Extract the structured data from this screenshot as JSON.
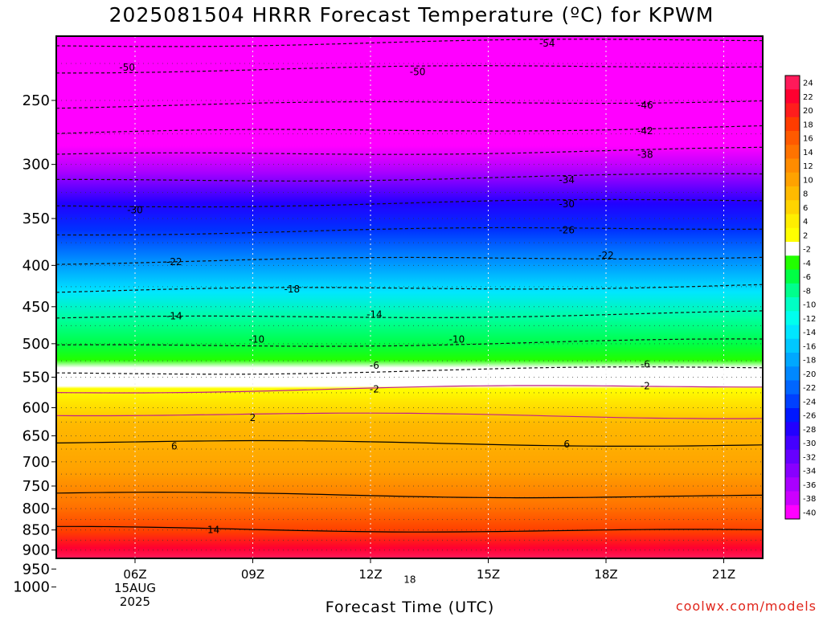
{
  "title": "2025081504 HRRR Forecast Temperature (ºC) for KPWM",
  "credit": "coolwx.com/models",
  "chart_data": {
    "type": "heatmap",
    "title": "2025081504 HRRR Forecast Temperature (ºC) for KPWM",
    "xlabel": "Forecast Time (UTC)",
    "ylabel": "",
    "x_ticks": [
      {
        "hour": 6,
        "label": "06Z",
        "extra": [
          "15AUG",
          "2025"
        ]
      },
      {
        "hour": 9,
        "label": "09Z"
      },
      {
        "hour": 12,
        "label": "12Z"
      },
      {
        "hour": 15,
        "label": "15Z"
      },
      {
        "hour": 18,
        "label": "18Z"
      },
      {
        "hour": 21,
        "label": "21Z"
      }
    ],
    "xlim_hours_utc": [
      4,
      22
    ],
    "y_scale": "log-pressure (hPa)",
    "ylim_hPa": [
      1050,
      200
    ],
    "y_ticks": [
      250,
      300,
      350,
      400,
      450,
      500,
      550,
      600,
      650,
      700,
      750,
      800,
      850,
      900,
      950,
      1000
    ],
    "y_gridlines_hPa": [
      225,
      250,
      275,
      300,
      325,
      350,
      375,
      400,
      425,
      450,
      475,
      500,
      525,
      550,
      575,
      600,
      625,
      650,
      675,
      700,
      725,
      750,
      775,
      800,
      825,
      850,
      875,
      900,
      925,
      950,
      975,
      1000
    ],
    "colorbar": {
      "labels": [
        "24",
        "22",
        "20",
        "18",
        "16",
        "14",
        "12",
        "10",
        "8",
        "6",
        "4",
        "2",
        "-2",
        "-4",
        "-6",
        "-8",
        "-10",
        "-12",
        "-14",
        "-16",
        "-18",
        "-20",
        "-22",
        "-24",
        "-26",
        "-28",
        "-30",
        "-32",
        "-34",
        "-36",
        "-38",
        "-40"
      ],
      "colors": [
        "#ff1a5a",
        "#ff0030",
        "#ff1d1d",
        "#ff3c00",
        "#ff5a00",
        "#ff7300",
        "#ff8c00",
        "#ffa200",
        "#ffba00",
        "#ffd400",
        "#ffee00",
        "#ffff00",
        "#ffffff",
        "#22ff00",
        "#00ff44",
        "#00ff8c",
        "#00ffc4",
        "#00ffee",
        "#00e6ff",
        "#00c8ff",
        "#00a8ff",
        "#0088ff",
        "#0066ff",
        "#0040ff",
        "#0018ff",
        "#2200ff",
        "#4400ff",
        "#6600ff",
        "#8800ff",
        "#aa00ff",
        "#cc00ff",
        "#ff00ff"
      ]
    },
    "isotherm_levels_hPa": [
      {
        "temp": -54,
        "hPa": 212
      },
      {
        "temp": -50,
        "hPa": 228
      },
      {
        "temp": -46,
        "hPa": 252
      },
      {
        "temp": -42,
        "hPa": 272
      },
      {
        "temp": -38,
        "hPa": 290
      },
      {
        "temp": -34,
        "hPa": 312
      },
      {
        "temp": -30,
        "hPa": 335
      },
      {
        "temp": -26,
        "hPa": 362
      },
      {
        "temp": -22,
        "hPa": 393
      },
      {
        "temp": -18,
        "hPa": 427
      },
      {
        "temp": -14,
        "hPa": 462
      },
      {
        "temp": -10,
        "hPa": 500
      },
      {
        "temp": -6,
        "hPa": 540
      },
      {
        "temp": -2,
        "hPa": 568
      },
      {
        "temp": 2,
        "hPa": 613
      },
      {
        "temp": 6,
        "hPa": 664
      },
      {
        "temp": 10,
        "hPa": 770
      },
      {
        "temp": 14,
        "hPa": 850
      },
      {
        "temp": 18,
        "hPa": 975
      }
    ],
    "contour_labels": [
      {
        "text": "-54",
        "hour": 16.5,
        "hPa": 212
      },
      {
        "text": "-50",
        "hour": 5.8,
        "hPa": 227
      },
      {
        "text": "-50",
        "hour": 13.2,
        "hPa": 230
      },
      {
        "text": "-46",
        "hour": 19.0,
        "hPa": 253
      },
      {
        "text": "-42",
        "hour": 19.0,
        "hPa": 272
      },
      {
        "text": "-38",
        "hour": 19.0,
        "hPa": 291
      },
      {
        "text": "-34",
        "hour": 17.0,
        "hPa": 313
      },
      {
        "text": "-30",
        "hour": 6.0,
        "hPa": 341
      },
      {
        "text": "-30",
        "hour": 17.0,
        "hPa": 335
      },
      {
        "text": "-26",
        "hour": 17.0,
        "hPa": 361
      },
      {
        "text": "-22",
        "hour": 7.0,
        "hPa": 395
      },
      {
        "text": "-22",
        "hour": 18.0,
        "hPa": 388
      },
      {
        "text": "-18",
        "hour": 10.0,
        "hPa": 427
      },
      {
        "text": "-14",
        "hour": 7.0,
        "hPa": 461
      },
      {
        "text": "-14",
        "hour": 12.1,
        "hPa": 459
      },
      {
        "text": "-10",
        "hour": 9.1,
        "hPa": 493
      },
      {
        "text": "-10",
        "hour": 14.2,
        "hPa": 493
      },
      {
        "text": "-6",
        "hour": 12.1,
        "hPa": 531
      },
      {
        "text": "-6",
        "hour": 19.0,
        "hPa": 529
      },
      {
        "text": "-2",
        "hour": 12.1,
        "hPa": 568
      },
      {
        "text": "-2",
        "hour": 19.0,
        "hPa": 563
      },
      {
        "text": "2",
        "hour": 9.0,
        "hPa": 616
      },
      {
        "text": "6",
        "hour": 7.0,
        "hPa": 668
      },
      {
        "text": "6",
        "hour": 17.0,
        "hPa": 664
      },
      {
        "text": "14",
        "hour": 8.0,
        "hPa": 848
      },
      {
        "text": "18",
        "hour": 13.0,
        "hPa": 977
      }
    ]
  }
}
